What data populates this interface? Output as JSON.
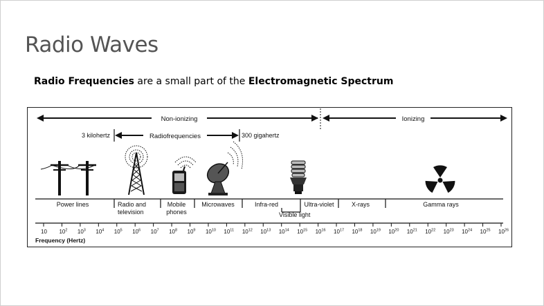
{
  "slide": {
    "title": "Radio Waves",
    "subtitle_bold_1": "Radio Frequencies",
    "subtitle_mid": " are a small part of the ",
    "subtitle_bold_2": "Electromagnetic Spectrum"
  },
  "diagram": {
    "nonionizing_label": "Non-ionizing",
    "ionizing_label": "Ionizing",
    "low_rf_label": "3 kilohertz",
    "rf_label": "Radiofrequencies",
    "high_rf_label": "300 gigahertz",
    "bands": [
      {
        "name": "Power lines",
        "line1": "Power lines",
        "line2": ""
      },
      {
        "name": "Radio and television",
        "line1": "Radio and",
        "line2": "television"
      },
      {
        "name": "Mobile phones",
        "line1": "Mobile",
        "line2": "phones"
      },
      {
        "name": "Microwaves",
        "line1": "Microwaves",
        "line2": ""
      },
      {
        "name": "Infra-red",
        "line1": "Infra-red",
        "line2": ""
      },
      {
        "name": "Ultra-violet",
        "line1": "Ultra-violet",
        "line2": ""
      },
      {
        "name": "X-rays",
        "line1": "X-rays",
        "line2": ""
      },
      {
        "name": "Gamma rays",
        "line1": "Gamma rays",
        "line2": ""
      }
    ],
    "visible_light_label": "Visible light",
    "axis_label": "Frequency (Hertz)",
    "ticks": [
      {
        "base": "10",
        "exp": ""
      },
      {
        "base": "10",
        "exp": "2"
      },
      {
        "base": "10",
        "exp": "3"
      },
      {
        "base": "10",
        "exp": "4"
      },
      {
        "base": "10",
        "exp": "5"
      },
      {
        "base": "10",
        "exp": "6"
      },
      {
        "base": "10",
        "exp": "7"
      },
      {
        "base": "10",
        "exp": "8"
      },
      {
        "base": "10",
        "exp": "9"
      },
      {
        "base": "10",
        "exp": "10"
      },
      {
        "base": "10",
        "exp": "11"
      },
      {
        "base": "10",
        "exp": "12"
      },
      {
        "base": "10",
        "exp": "13"
      },
      {
        "base": "10",
        "exp": "14"
      },
      {
        "base": "10",
        "exp": "15"
      },
      {
        "base": "10",
        "exp": "16"
      },
      {
        "base": "10",
        "exp": "17"
      },
      {
        "base": "10",
        "exp": "18"
      },
      {
        "base": "10",
        "exp": "19"
      },
      {
        "base": "10",
        "exp": "20"
      },
      {
        "base": "10",
        "exp": "21"
      },
      {
        "base": "10",
        "exp": "22"
      },
      {
        "base": "10",
        "exp": "23"
      },
      {
        "base": "10",
        "exp": "24"
      },
      {
        "base": "10",
        "exp": "25"
      },
      {
        "base": "10",
        "exp": "26"
      }
    ],
    "icons": [
      "power-lines-icon",
      "radio-tower-icon",
      "mobile-phone-icon",
      "satellite-dish-icon",
      "light-bulb-icon",
      "radiation-icon"
    ]
  }
}
